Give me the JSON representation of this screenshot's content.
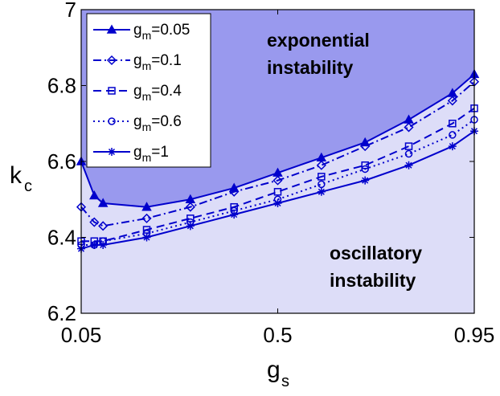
{
  "chart_data": {
    "type": "line",
    "xlabel": "g",
    "xlabel_sub": "s",
    "ylabel": "k",
    "ylabel_sub": "c",
    "xlim": [
      0.05,
      0.95
    ],
    "ylim": [
      6.2,
      7.0
    ],
    "xticks": [
      "0.05",
      "0.5",
      "0.95"
    ],
    "yticks": [
      "6.2",
      "6.4",
      "6.6",
      "6.8",
      "7"
    ],
    "grid": false,
    "legend_position": "top-left",
    "region_labels": {
      "upper_line1": "exponential",
      "upper_line2": "instability",
      "lower_line1": "oscillatory",
      "lower_line2": "instability"
    },
    "colors": {
      "series": "#0000cc",
      "upper_region": "#9999ee",
      "lower_region": "#ddddf8"
    },
    "x": [
      0.05,
      0.08,
      0.1,
      0.2,
      0.3,
      0.4,
      0.5,
      0.6,
      0.7,
      0.8,
      0.9,
      0.95
    ],
    "series": [
      {
        "name_main": "g",
        "name_sub": "m",
        "name_value": "=0.05",
        "marker": "triangle",
        "dash": "solid",
        "values": [
          6.6,
          6.51,
          6.49,
          6.48,
          6.5,
          6.53,
          6.57,
          6.61,
          6.65,
          6.71,
          6.78,
          6.83
        ]
      },
      {
        "name_main": "g",
        "name_sub": "m",
        "name_value": "=0.1",
        "marker": "diamond",
        "dash": "dashdot",
        "values": [
          6.48,
          6.44,
          6.43,
          6.45,
          6.48,
          6.52,
          6.55,
          6.59,
          6.64,
          6.69,
          6.76,
          6.81
        ]
      },
      {
        "name_main": "g",
        "name_sub": "m",
        "name_value": "=0.4",
        "marker": "square",
        "dash": "dashed",
        "values": [
          6.39,
          6.39,
          6.39,
          6.42,
          6.45,
          6.48,
          6.52,
          6.56,
          6.59,
          6.64,
          6.7,
          6.74
        ]
      },
      {
        "name_main": "g",
        "name_sub": "m",
        "name_value": "=0.6",
        "marker": "circle",
        "dash": "dotted",
        "values": [
          6.38,
          6.38,
          6.39,
          6.41,
          6.44,
          6.47,
          6.5,
          6.54,
          6.58,
          6.62,
          6.67,
          6.71
        ]
      },
      {
        "name_main": "g",
        "name_sub": "m",
        "name_value": "=1",
        "marker": "star",
        "dash": "solid",
        "values": [
          6.37,
          6.38,
          6.38,
          6.4,
          6.43,
          6.46,
          6.49,
          6.52,
          6.55,
          6.59,
          6.64,
          6.68
        ]
      }
    ]
  }
}
